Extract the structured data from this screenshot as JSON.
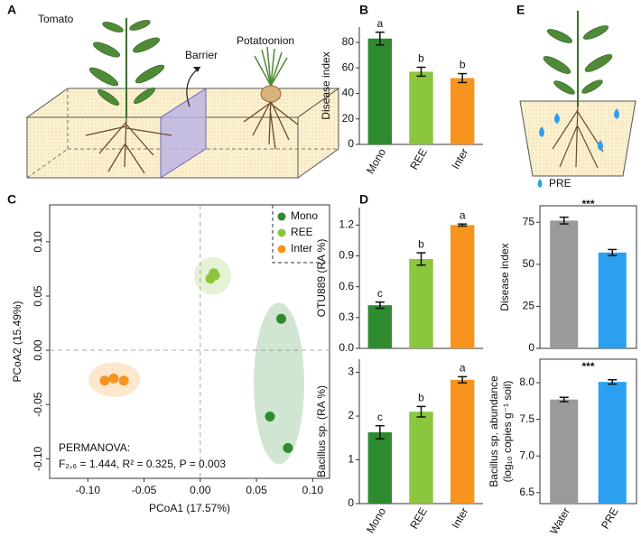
{
  "panel_labels": [
    "A",
    "B",
    "C",
    "D",
    "E"
  ],
  "illustration_a": {
    "labels": [
      "Tomato",
      "Barrier",
      "Potatoonion"
    ]
  },
  "illustration_e": {
    "legend": "PRE"
  },
  "chart_data": [
    {
      "type": "bar",
      "ylabel": "Disease index",
      "categories": [
        "Mono",
        "REE",
        "Inter"
      ],
      "values": [
        83,
        57,
        52
      ],
      "errors": [
        5,
        3.5,
        3.5
      ],
      "annotations": [
        "a",
        "b",
        "b"
      ],
      "colors": [
        "#2e8b30",
        "#8cc63f",
        "#f7941d"
      ],
      "ylim": [
        0,
        92
      ],
      "yticks": [
        0,
        20,
        40,
        60,
        80
      ]
    },
    {
      "type": "scatter",
      "xlabel": "PCoA1 (17.57%)",
      "ylabel": "PCoA2 (15.49%)",
      "series": [
        {
          "name": "Mono",
          "color": "#2e8b30",
          "x": [
            0.072,
            0.062,
            0.078
          ],
          "y": [
            0.029,
            -0.061,
            -0.09
          ]
        },
        {
          "name": "REE",
          "color": "#8cc63f",
          "x": [
            0.009,
            0.012,
            0.013
          ],
          "y": [
            0.066,
            0.071,
            0.069
          ]
        },
        {
          "name": "Inter",
          "color": "#f7941d",
          "x": [
            -0.085,
            -0.077,
            -0.068
          ],
          "y": [
            -0.028,
            -0.026,
            -0.028
          ]
        }
      ],
      "xlim": [
        -0.134,
        0.115
      ],
      "ylim": [
        -0.118,
        0.134
      ],
      "xticks": [
        {
          "value": -0.1,
          "label": "-0.10"
        },
        {
          "value": -0.05,
          "label": "-0.05"
        },
        {
          "value": 0,
          "label": "0.00"
        },
        {
          "value": 0.05,
          "label": "0.05"
        },
        {
          "value": 0.1,
          "label": "0.10"
        }
      ],
      "yticks": [
        {
          "value": -0.1,
          "label": "-0.10"
        },
        {
          "value": -0.05,
          "label": "-0.05"
        },
        {
          "value": 0,
          "label": "0.00"
        },
        {
          "value": 0.05,
          "label": "0.05"
        },
        {
          "value": 0.1,
          "label": "0.10"
        }
      ],
      "zero_lines": true,
      "legend": "upper right",
      "annotation": [
        "PERMANOVA:",
        "F₂,₆ = 1.444, R² = 0.325, P = 0.003"
      ]
    },
    {
      "type": "bar",
      "ylabel": "OTU889 (RA %)",
      "values": [
        0.42,
        0.87,
        1.2
      ],
      "errors": [
        0.03,
        0.06,
        0.01
      ],
      "annotations": [
        "c",
        "b",
        "a"
      ],
      "colors": [
        "#2e8b30",
        "#8cc63f",
        "#f7941d"
      ],
      "ylim": [
        0,
        1.37
      ],
      "yticks": [
        {
          "value": 0,
          "label": "0.0"
        },
        0.3,
        0.6,
        0.9,
        1.2
      ]
    },
    {
      "type": "bar",
      "ylabel": "Bacillus sp. (RA %)",
      "categories": [
        "Mono",
        "REE",
        "Inter"
      ],
      "values": [
        1.63,
        2.1,
        2.83
      ],
      "errors": [
        0.15,
        0.12,
        0.07
      ],
      "annotations": [
        "c",
        "b",
        "a"
      ],
      "colors": [
        "#2e8b30",
        "#8cc63f",
        "#f7941d"
      ],
      "ylim": [
        0,
        3.3
      ],
      "yticks": [
        0,
        1,
        2,
        3
      ]
    },
    {
      "type": "bar",
      "ylabel": "Disease index",
      "values": [
        76,
        57
      ],
      "errors": [
        2,
        1.8
      ],
      "significance": "***",
      "colors": [
        "#9a9a9a",
        "#2b9ff0"
      ],
      "ylim": [
        0,
        84.8
      ],
      "yticks": [
        0,
        25,
        50,
        75
      ],
      "frame": true
    },
    {
      "type": "bar",
      "ylabel": [
        "Bacillus sp. abundance",
        "(log₁₀ copies g⁻¹ soil)"
      ],
      "categories": [
        "Water",
        "PRE"
      ],
      "values": [
        7.77,
        8.01
      ],
      "errors": [
        0.03,
        0.03
      ],
      "significance": "***",
      "colors": [
        "#9a9a9a",
        "#2b9ff0"
      ],
      "ylim": [
        6.35,
        8.32
      ],
      "yticks": [
        6.5,
        {
          "value": 7,
          "label": "7.0"
        },
        7.5,
        {
          "value": 8,
          "label": "8.0"
        }
      ],
      "frame": true
    }
  ]
}
